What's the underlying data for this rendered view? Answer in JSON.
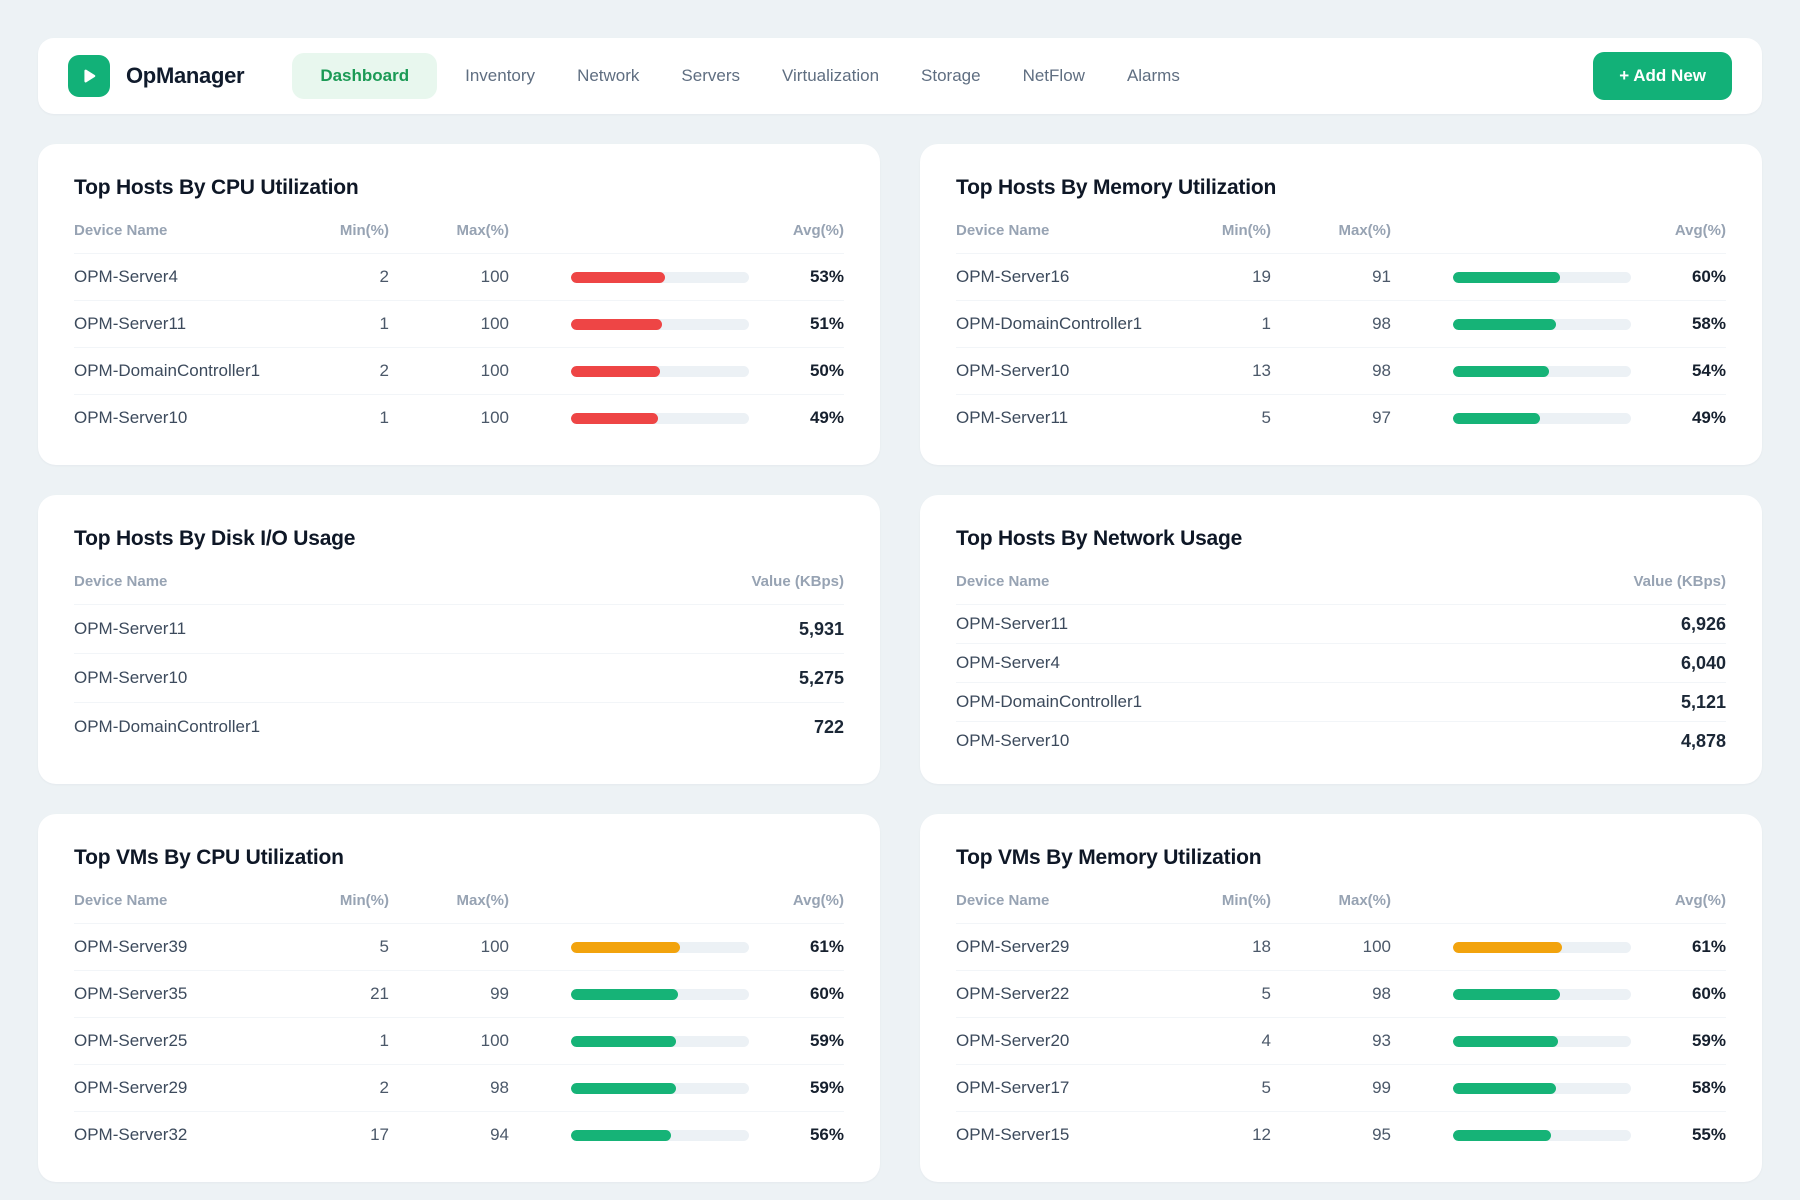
{
  "colors": {
    "brand_green": "#12b178",
    "red": "#ee4545",
    "green": "#16b377",
    "orange": "#f2a30d",
    "track": "#ecf1f5",
    "active_nav_bg": "#e8f7ee",
    "active_nav_text": "#1b9a55"
  },
  "header": {
    "brand": "OpManager",
    "nav_items": [
      {
        "label": "Dashboard",
        "active": true
      },
      {
        "label": "Inventory",
        "active": false
      },
      {
        "label": "Network",
        "active": false
      },
      {
        "label": "Servers",
        "active": false
      },
      {
        "label": "Virtualization",
        "active": false
      },
      {
        "label": "Storage",
        "active": false
      },
      {
        "label": "NetFlow",
        "active": false
      },
      {
        "label": "Alarms",
        "active": false
      }
    ],
    "add_new_label": "+ Add New"
  },
  "cards": [
    {
      "title": "Top Hosts By CPU Utilization",
      "type": "utilization",
      "columns": [
        "Device Name",
        "Min(%)",
        "Max(%)",
        "Avg(%)"
      ],
      "rows": [
        {
          "device": "OPM-Server4",
          "min": 2,
          "max": 100,
          "avg": 53,
          "avg_label": "53%",
          "color": "red"
        },
        {
          "device": "OPM-Server11",
          "min": 1,
          "max": 100,
          "avg": 51,
          "avg_label": "51%",
          "color": "red"
        },
        {
          "device": "OPM-DomainController1",
          "min": 2,
          "max": 100,
          "avg": 50,
          "avg_label": "50%",
          "color": "red"
        },
        {
          "device": "OPM-Server10",
          "min": 1,
          "max": 100,
          "avg": 49,
          "avg_label": "49%",
          "color": "red"
        }
      ]
    },
    {
      "title": "Top Hosts By Memory Utilization",
      "type": "utilization",
      "columns": [
        "Device Name",
        "Min(%)",
        "Max(%)",
        "Avg(%)"
      ],
      "rows": [
        {
          "device": "OPM-Server16",
          "min": 19,
          "max": 91,
          "avg": 60,
          "avg_label": "60%",
          "color": "green"
        },
        {
          "device": "OPM-DomainController1",
          "min": 1,
          "max": 98,
          "avg": 58,
          "avg_label": "58%",
          "color": "green"
        },
        {
          "device": "OPM-Server10",
          "min": 13,
          "max": 98,
          "avg": 54,
          "avg_label": "54%",
          "color": "green"
        },
        {
          "device": "OPM-Server11",
          "min": 5,
          "max": 97,
          "avg": 49,
          "avg_label": "49%",
          "color": "green"
        }
      ]
    },
    {
      "title": "Top Hosts By Disk I/O Usage",
      "type": "value",
      "columns": [
        "Device Name",
        "Value (KBps)"
      ],
      "density": "normal",
      "rows": [
        {
          "device": "OPM-Server11",
          "value": "5,931"
        },
        {
          "device": "OPM-Server10",
          "value": "5,275"
        },
        {
          "device": "OPM-DomainController1",
          "value": "722"
        }
      ]
    },
    {
      "title": "Top Hosts By Network Usage",
      "type": "value",
      "columns": [
        "Device Name",
        "Value (KBps)"
      ],
      "density": "dense",
      "rows": [
        {
          "device": "OPM-Server11",
          "value": "6,926"
        },
        {
          "device": "OPM-Server4",
          "value": "6,040"
        },
        {
          "device": "OPM-DomainController1",
          "value": "5,121"
        },
        {
          "device": "OPM-Server10",
          "value": "4,878"
        }
      ]
    },
    {
      "title": "Top VMs By CPU Utilization",
      "type": "utilization",
      "columns": [
        "Device Name",
        "Min(%)",
        "Max(%)",
        "Avg(%)"
      ],
      "rows": [
        {
          "device": "OPM-Server39",
          "min": 5,
          "max": 100,
          "avg": 61,
          "avg_label": "61%",
          "color": "orange"
        },
        {
          "device": "OPM-Server35",
          "min": 21,
          "max": 99,
          "avg": 60,
          "avg_label": "60%",
          "color": "green"
        },
        {
          "device": "OPM-Server25",
          "min": 1,
          "max": 100,
          "avg": 59,
          "avg_label": "59%",
          "color": "green"
        },
        {
          "device": "OPM-Server29",
          "min": 2,
          "max": 98,
          "avg": 59,
          "avg_label": "59%",
          "color": "green"
        },
        {
          "device": "OPM-Server32",
          "min": 17,
          "max": 94,
          "avg": 56,
          "avg_label": "56%",
          "color": "green"
        }
      ]
    },
    {
      "title": "Top VMs By Memory Utilization",
      "type": "utilization",
      "columns": [
        "Device Name",
        "Min(%)",
        "Max(%)",
        "Avg(%)"
      ],
      "rows": [
        {
          "device": "OPM-Server29",
          "min": 18,
          "max": 100,
          "avg": 61,
          "avg_label": "61%",
          "color": "orange"
        },
        {
          "device": "OPM-Server22",
          "min": 5,
          "max": 98,
          "avg": 60,
          "avg_label": "60%",
          "color": "green"
        },
        {
          "device": "OPM-Server20",
          "min": 4,
          "max": 93,
          "avg": 59,
          "avg_label": "59%",
          "color": "green"
        },
        {
          "device": "OPM-Server17",
          "min": 5,
          "max": 99,
          "avg": 58,
          "avg_label": "58%",
          "color": "green"
        },
        {
          "device": "OPM-Server15",
          "min": 12,
          "max": 95,
          "avg": 55,
          "avg_label": "55%",
          "color": "green"
        }
      ]
    }
  ]
}
